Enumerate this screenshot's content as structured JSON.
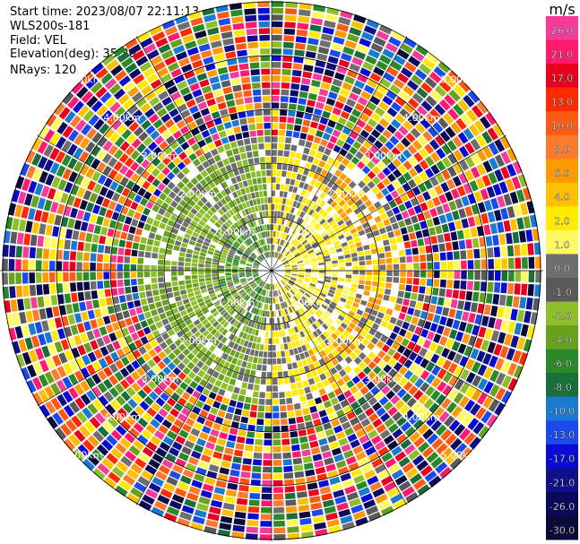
{
  "header": {
    "start_time": "Start time: 2023/08/07 22:11:13",
    "instrument": "WLS200s-181",
    "field": "Field: VEL",
    "elevation": "Elevation(deg): 35.30",
    "nrays": "NRays: 120"
  },
  "colorbar": {
    "unit": "m/s",
    "ticks": [
      "26.0",
      "21.0",
      "17.0",
      "13.0",
      "10.0",
      "8.0",
      "6.0",
      "4.0",
      "2.0",
      "1.0",
      "0.0",
      "-1.0",
      "-2.0",
      "-4.0",
      "-6.0",
      "-8.0",
      "-10.0",
      "-13.0",
      "-17.0",
      "-21.0",
      "-26.0",
      "-30.0"
    ],
    "colors": [
      "#f53c9a",
      "#ff1a6e",
      "#e8001e",
      "#ff2a00",
      "#ff5a14",
      "#ff7a2a",
      "#ff9a00",
      "#ffc000",
      "#ffea00",
      "#fffa60",
      "#6e6e6e",
      "#5a5a5a",
      "#8ebe2a",
      "#6aa020",
      "#2a8a2a",
      "#1a6e3a",
      "#1a7ad2",
      "#1a4aea",
      "#0a0ad2",
      "#10108a",
      "#0a0a5a",
      "#0a0a3a"
    ]
  },
  "range_rings": {
    "labels": [
      "1.00km",
      "2.00km",
      "3.00km",
      "4.00km",
      "5.00km"
    ]
  }
}
